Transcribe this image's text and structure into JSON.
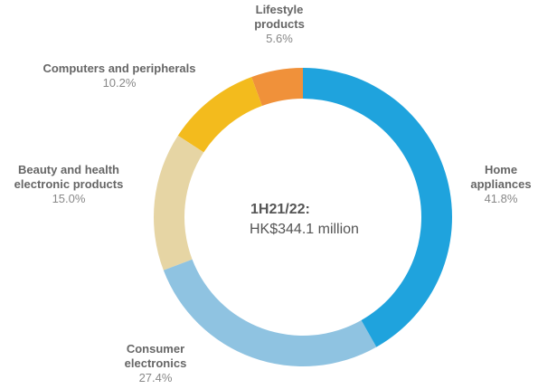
{
  "chart_data": {
    "type": "donut",
    "center_label": [
      "1H21/22:",
      "HK$344.1 million"
    ],
    "categories": [
      "Home appliances",
      "Consumer electronics",
      "Beauty and health electronic products",
      "Computers and peripherals",
      "Lifestyle products"
    ],
    "values": [
      41.8,
      27.4,
      15.0,
      10.2,
      5.6
    ],
    "value_labels": [
      "41.8%",
      "27.4%",
      "15.0%",
      "10.2%",
      "5.6%"
    ],
    "colors": [
      "#1fa3dd",
      "#8fc3e1",
      "#e6d5a4",
      "#f3bb1d",
      "#f0913a"
    ]
  }
}
